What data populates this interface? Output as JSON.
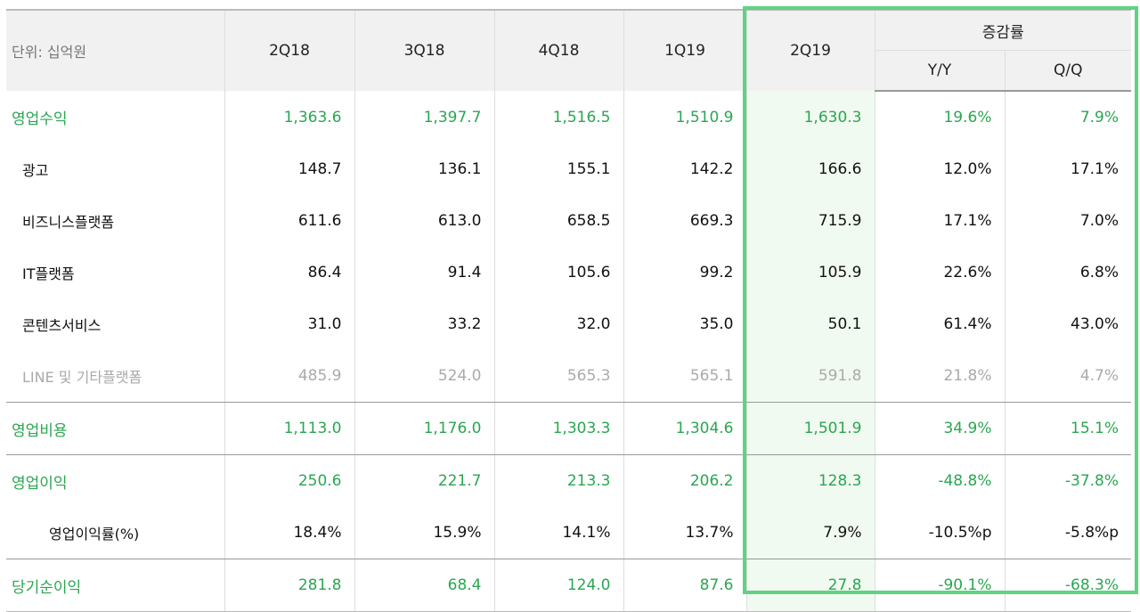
{
  "header": {
    "unit": "단위: 십억원",
    "periods": [
      "2Q18",
      "3Q18",
      "4Q18",
      "1Q19",
      "2Q19"
    ],
    "change": "증감률",
    "yy": "Y/Y",
    "qq": "Q/Q"
  },
  "rows": [
    {
      "label": "영업수익",
      "type": "main",
      "v": [
        "1,363.6",
        "1,397.7",
        "1,516.5",
        "1,510.9",
        "1,630.3",
        "19.6%",
        "7.9%"
      ]
    },
    {
      "label": "광고",
      "type": "sub",
      "v": [
        "148.7",
        "136.1",
        "155.1",
        "142.2",
        "166.6",
        "12.0%",
        "17.1%"
      ]
    },
    {
      "label": "비즈니스플랫폼",
      "type": "sub",
      "v": [
        "611.6",
        "613.0",
        "658.5",
        "669.3",
        "715.9",
        "17.1%",
        "7.0%"
      ]
    },
    {
      "label": "IT플랫폼",
      "type": "sub",
      "v": [
        "86.4",
        "91.4",
        "105.6",
        "99.2",
        "105.9",
        "22.6%",
        "6.8%"
      ]
    },
    {
      "label": "콘텐츠서비스",
      "type": "sub",
      "v": [
        "31.0",
        "33.2",
        "32.0",
        "35.0",
        "50.1",
        "61.4%",
        "43.0%"
      ]
    },
    {
      "label": "LINE 및 기타플랫폼",
      "type": "gray",
      "v": [
        "485.9",
        "524.0",
        "565.3",
        "565.1",
        "591.8",
        "21.8%",
        "4.7%"
      ]
    },
    {
      "label": "영업비용",
      "type": "main",
      "v": [
        "1,113.0",
        "1,176.0",
        "1,303.3",
        "1,304.6",
        "1,501.9",
        "34.9%",
        "15.1%"
      ]
    },
    {
      "label": "영업이익",
      "type": "main",
      "v": [
        "250.6",
        "221.7",
        "213.3",
        "206.2",
        "128.3",
        "-48.8%",
        "-37.8%"
      ]
    },
    {
      "label": "영업이익률(%)",
      "type": "sub2",
      "v": [
        "18.4%",
        "15.9%",
        "14.1%",
        "13.7%",
        "7.9%",
        "-10.5%p",
        "-5.8%p"
      ]
    },
    {
      "label": "당기순이익",
      "type": "main",
      "v": [
        "281.8",
        "68.4",
        "124.0",
        "87.6",
        "27.8",
        "-90.1%",
        "-68.3%"
      ]
    }
  ],
  "colors": {
    "accent": "#2aa652",
    "highlight_border": "#5fd37f"
  }
}
